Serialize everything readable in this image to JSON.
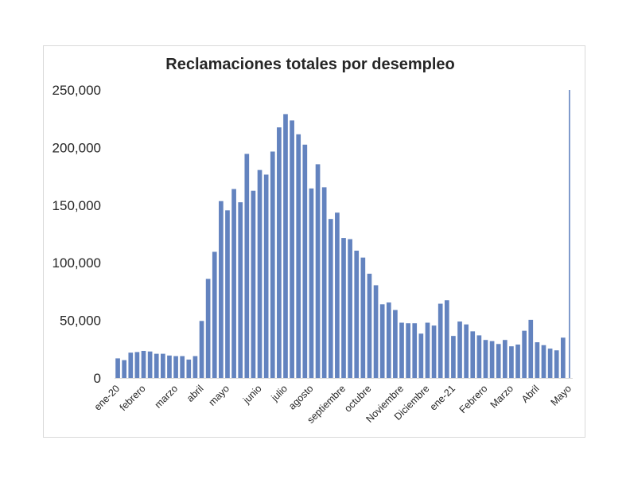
{
  "chart_data": {
    "type": "bar",
    "title": "Reclamaciones totales por desempleo",
    "xlabel": "",
    "ylabel": "",
    "ylim": [
      0,
      250000
    ],
    "yticks": [
      "0",
      "50,000",
      "100,000",
      "150,000",
      "200,000",
      "250,000"
    ],
    "bar_color": "#6383bf",
    "grid": false,
    "legend": "none",
    "x_labels": [
      {
        "label": "ene-20",
        "index": 0
      },
      {
        "label": "febrero",
        "index": 4
      },
      {
        "label": "marzo",
        "index": 9
      },
      {
        "label": "abril",
        "index": 13
      },
      {
        "label": "mayo",
        "index": 17
      },
      {
        "label": "junio",
        "index": 22
      },
      {
        "label": "julio",
        "index": 26
      },
      {
        "label": "agosto",
        "index": 30
      },
      {
        "label": "septiembre",
        "index": 35
      },
      {
        "label": "octubre",
        "index": 39
      },
      {
        "label": "Noviembre",
        "index": 44
      },
      {
        "label": "Diciembre",
        "index": 48
      },
      {
        "label": "ene-21",
        "index": 52
      },
      {
        "label": "Febrero",
        "index": 57
      },
      {
        "label": "Marzo",
        "index": 61
      },
      {
        "label": "Abril",
        "index": 65
      },
      {
        "label": "Mayo",
        "index": 70
      }
    ],
    "values": [
      17000,
      15500,
      22000,
      22500,
      23500,
      23000,
      21000,
      21000,
      19500,
      19000,
      19000,
      16000,
      19000,
      49500,
      86000,
      109500,
      153500,
      145500,
      164000,
      152500,
      194500,
      162500,
      180500,
      176500,
      196500,
      217500,
      229000,
      223500,
      211500,
      202500,
      164500,
      185500,
      165500,
      138000,
      143500,
      121500,
      120500,
      110500,
      104500,
      90500,
      80500,
      64000,
      65500,
      59000,
      48000,
      47500,
      47500,
      38500,
      48000,
      45500,
      64500,
      67500,
      36500,
      49000,
      46500,
      40500,
      37000,
      33000,
      32000,
      29500,
      33000,
      27500,
      29000,
      41000,
      50500,
      31000,
      28500,
      25500,
      24000,
      35000,
      250000
    ]
  }
}
